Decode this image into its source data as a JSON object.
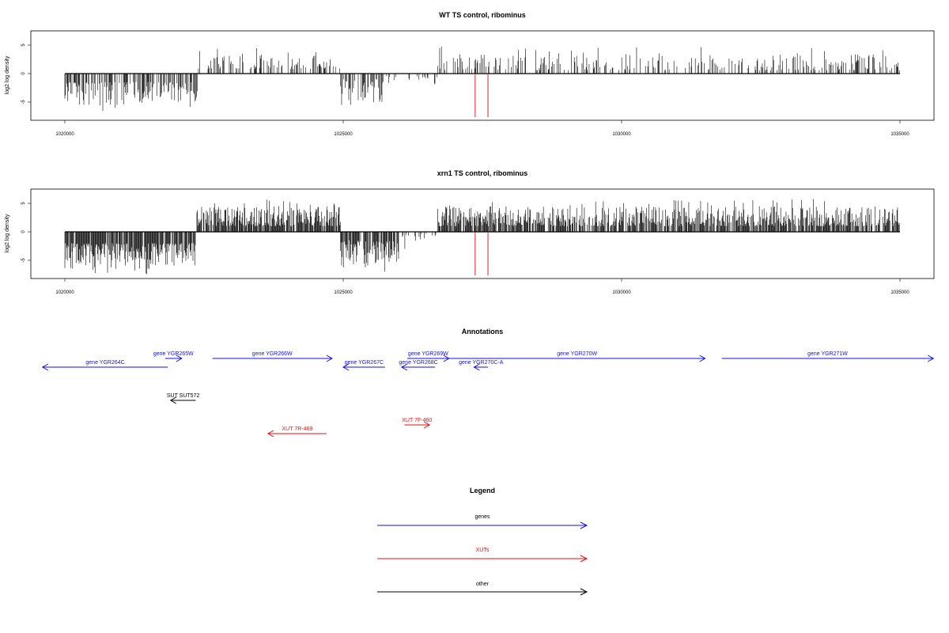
{
  "chart_data": [
    {
      "type": "bar",
      "title": "WT TS control, ribominus",
      "xlabel": "",
      "ylabel": "log2 log density",
      "xlim": [
        1020000,
        1035000
      ],
      "ylim": [
        -7.5,
        7.5
      ],
      "xticks": [
        "1020000",
        "1025000",
        "1030000",
        "1035000"
      ],
      "yticks": [
        "-5",
        "0",
        "5"
      ],
      "markers": [
        1027370,
        1027600
      ],
      "marker_color": "#e02020",
      "bar_color": "#000000",
      "segments": [
        {
          "x": [
            1020000,
            1022400
          ],
          "sign": -1,
          "min": 1.5,
          "max": 5.5,
          "density": 0.55
        },
        {
          "x": [
            1022400,
            1024950
          ],
          "sign": 1,
          "min": 0.8,
          "max": 3.4,
          "density": 0.35
        },
        {
          "x": [
            1024950,
            1025700
          ],
          "sign": -1,
          "min": 1.0,
          "max": 5.0,
          "density": 0.55
        },
        {
          "x": [
            1025700,
            1026700
          ],
          "sign": -1,
          "min": 0.4,
          "max": 2.0,
          "density": 0.18
        },
        {
          "x": [
            1026700,
            1035000
          ],
          "sign": 1,
          "min": 0.6,
          "max": 3.6,
          "density": 0.3
        }
      ]
    },
    {
      "type": "bar",
      "title": "xrn1 TS control, ribominus",
      "xlabel": "",
      "ylabel": "log2 log density",
      "xlim": [
        1020000,
        1035000
      ],
      "ylim": [
        -7.5,
        7.5
      ],
      "xticks": [
        "1020000",
        "1025000",
        "1030000",
        "1035000"
      ],
      "yticks": [
        "-5",
        "0",
        "5"
      ],
      "markers": [
        1027370,
        1027600
      ],
      "marker_color": "#e02020",
      "bar_color": "#000000",
      "segments": [
        {
          "x": [
            1020000,
            1022350
          ],
          "sign": -1,
          "min": 2.0,
          "max": 6.5,
          "density": 0.9
        },
        {
          "x": [
            1022350,
            1024950
          ],
          "sign": 1,
          "min": 1.0,
          "max": 4.5,
          "density": 0.8
        },
        {
          "x": [
            1024950,
            1026000
          ],
          "sign": -1,
          "min": 1.5,
          "max": 6.0,
          "density": 0.8
        },
        {
          "x": [
            1026000,
            1026700
          ],
          "sign": -1,
          "min": 0.3,
          "max": 2.5,
          "density": 0.3
        },
        {
          "x": [
            1026700,
            1035000
          ],
          "sign": 1,
          "min": 1.0,
          "max": 4.5,
          "density": 0.75
        }
      ]
    }
  ],
  "annotations": {
    "title": "Annotations",
    "colors": {
      "gene": "#1010e0",
      "xut": "#e01010",
      "other": "#000000"
    },
    "items": [
      {
        "label": "gene YGR264C",
        "kind": "gene",
        "dir": "left",
        "start": 1019600,
        "end": 1021850,
        "row": 1
      },
      {
        "label": "gene YGR265W",
        "kind": "gene",
        "dir": "right",
        "start": 1021800,
        "end": 1022100,
        "row": 0
      },
      {
        "label": "gene YGR266W",
        "kind": "gene",
        "dir": "right",
        "start": 1022650,
        "end": 1024800,
        "row": 0
      },
      {
        "label": "gene YGR267C",
        "kind": "gene",
        "dir": "left",
        "start": 1025000,
        "end": 1025750,
        "row": 1
      },
      {
        "label": "gene YGR268C",
        "kind": "gene",
        "dir": "left",
        "start": 1026050,
        "end": 1026650,
        "row": 1
      },
      {
        "label": "gene YGR269W",
        "kind": "gene",
        "dir": "right",
        "start": 1026150,
        "end": 1026900,
        "row": 0
      },
      {
        "label": "gene YGR270C-A",
        "kind": "gene",
        "dir": "left",
        "start": 1027350,
        "end": 1027600,
        "row": 1
      },
      {
        "label": "gene YGR270W",
        "kind": "gene",
        "dir": "right",
        "start": 1026900,
        "end": 1031500,
        "row": 0
      },
      {
        "label": "gene YGR271W",
        "kind": "gene",
        "dir": "right",
        "start": 1031800,
        "end": 1035600,
        "row": 0
      },
      {
        "label": "SUT SUT572",
        "kind": "other",
        "dir": "left",
        "start": 1021900,
        "end": 1022350,
        "row": 2
      },
      {
        "label": "XUT 7R-469",
        "kind": "xut",
        "dir": "left",
        "start": 1023650,
        "end": 1024700,
        "row": 4
      },
      {
        "label": "XUT 7F-460",
        "kind": "xut",
        "dir": "right",
        "start": 1026100,
        "end": 1026550,
        "row": 3
      }
    ]
  },
  "legend": {
    "title": "Legend",
    "entries": [
      {
        "label": "genes",
        "color": "#1010e0"
      },
      {
        "label": "XUTs",
        "color": "#e01010"
      },
      {
        "label": "other",
        "color": "#000000"
      }
    ]
  }
}
